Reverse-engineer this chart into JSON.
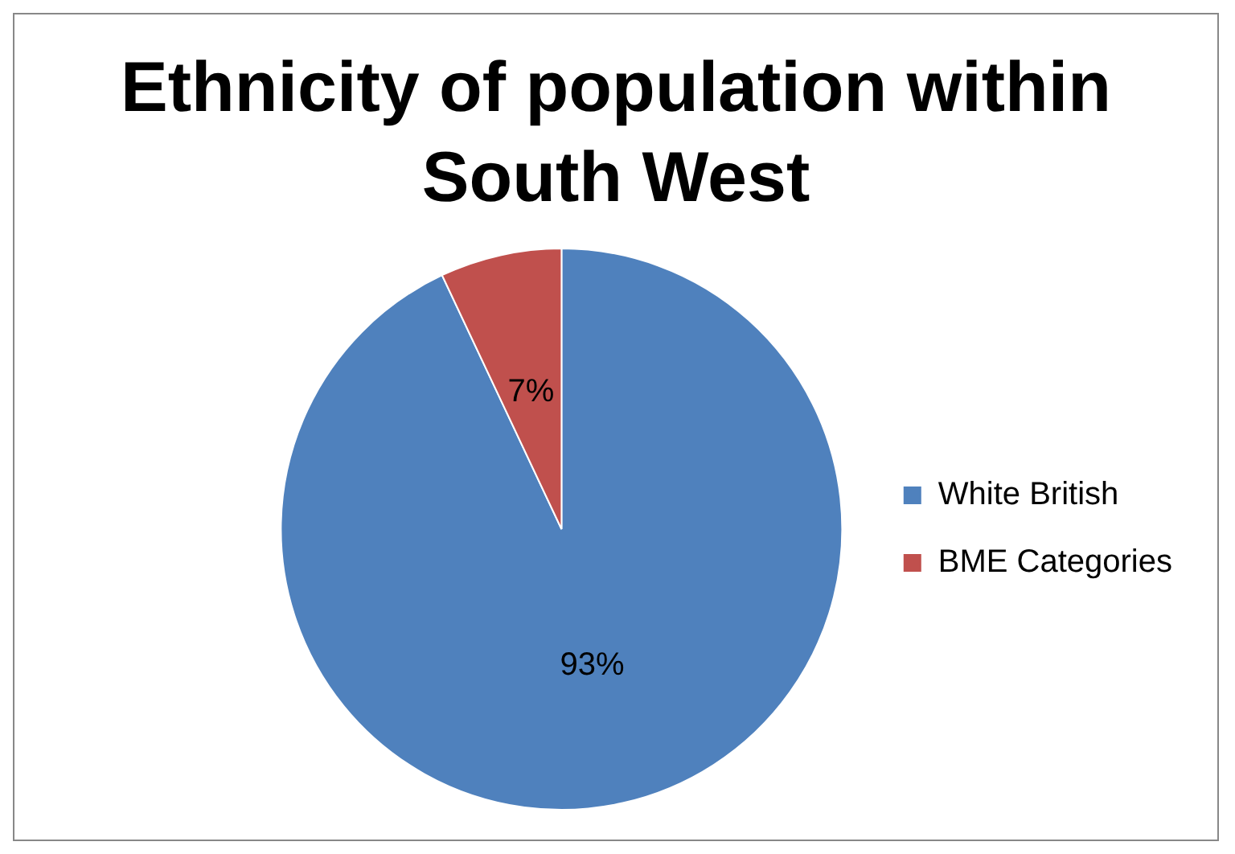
{
  "chart_data": {
    "type": "pie",
    "title": "Ethnicity of population within South West",
    "categories": [
      "White British",
      "BME Categories"
    ],
    "values": [
      93,
      7
    ],
    "colors": [
      "#4f81bd",
      "#c0504d"
    ],
    "value_labels": [
      "93%",
      "7%"
    ],
    "legend": "right"
  }
}
